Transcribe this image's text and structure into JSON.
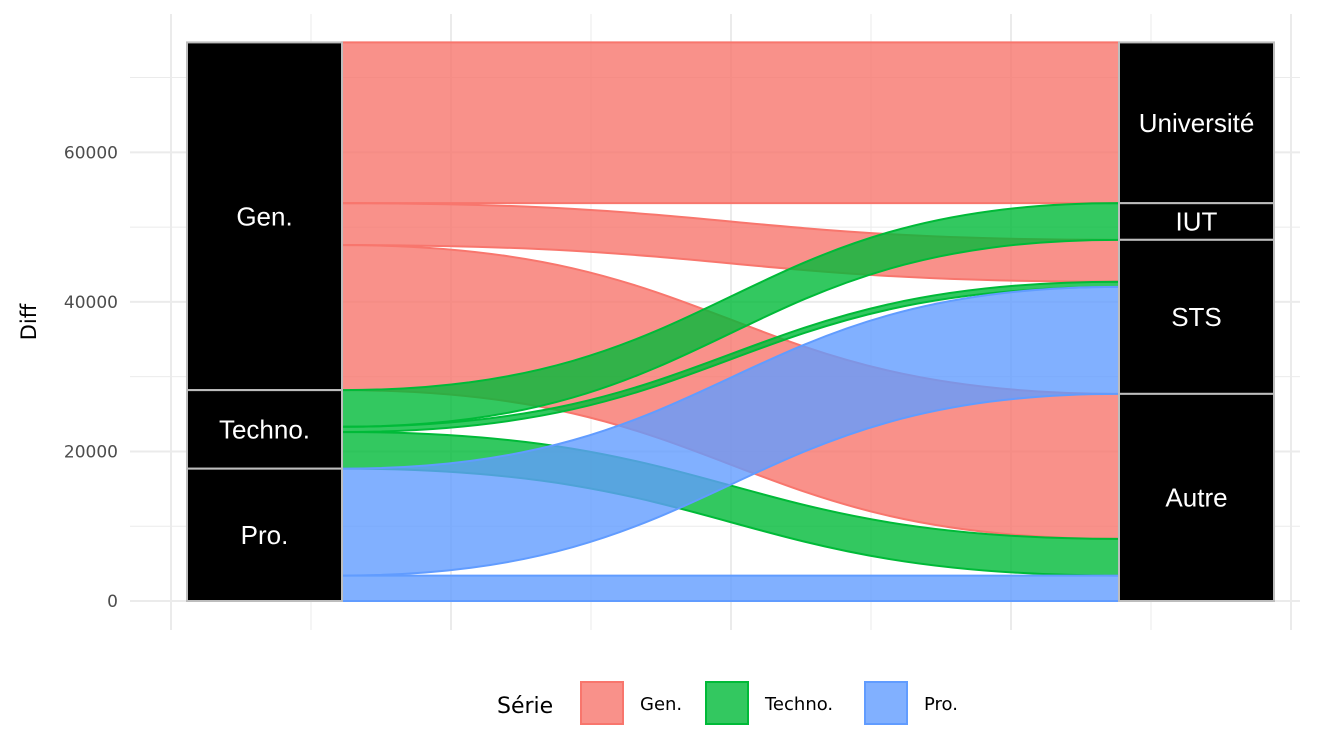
{
  "chart_data": {
    "type": "alluvial",
    "title": "",
    "xlabel": "",
    "ylabel": "Diff",
    "ylim": [
      0,
      75000
    ],
    "yticks": [
      0,
      20000,
      40000,
      60000
    ],
    "grid": true,
    "legend_position": "bottom",
    "legend_title": "Série",
    "series": [
      {
        "name": "Gen.",
        "color": "#F8766D"
      },
      {
        "name": "Techno.",
        "color": "#00BA38"
      },
      {
        "name": "Pro.",
        "color": "#619CFF"
      }
    ],
    "left_axis": [
      {
        "label": "Gen.",
        "value": 46500
      },
      {
        "label": "Techno.",
        "value": 10500
      },
      {
        "label": "Pro.",
        "value": 17700
      }
    ],
    "right_axis": [
      {
        "label": "Université",
        "value": 21500
      },
      {
        "label": "IUT",
        "value": 4900
      },
      {
        "label": "STS",
        "value": 20600
      },
      {
        "label": "Autre",
        "value": 27700
      }
    ],
    "flows": [
      {
        "from": "Gen.",
        "to": "Université",
        "value": 21500
      },
      {
        "from": "Gen.",
        "to": "STS",
        "value": 5600
      },
      {
        "from": "Gen.",
        "to": "Autre",
        "value": 19400
      },
      {
        "from": "Techno.",
        "to": "IUT",
        "value": 4900
      },
      {
        "from": "Techno.",
        "to": "STS",
        "value": 700
      },
      {
        "from": "Techno.",
        "to": "Autre",
        "value": 4900
      },
      {
        "from": "Pro.",
        "to": "STS",
        "value": 14300
      },
      {
        "from": "Pro.",
        "to": "Autre",
        "value": 3400
      }
    ]
  }
}
